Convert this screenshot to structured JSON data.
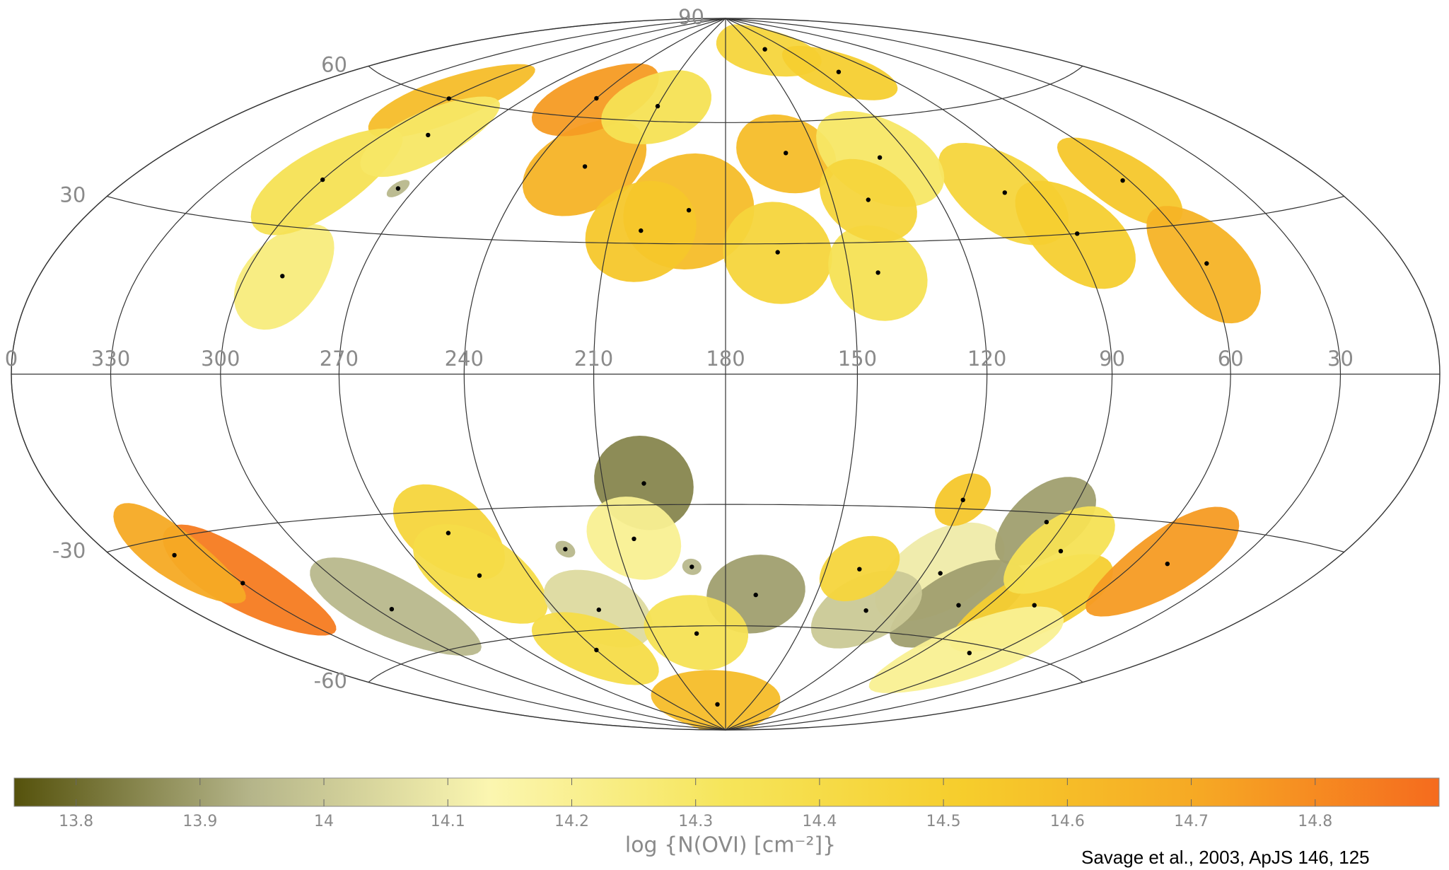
{
  "chart_data": {
    "type": "skymap",
    "projection": "hammer-aitoff",
    "lon_ticks": [
      {
        "value": 360,
        "label": "0"
      },
      330,
      300,
      270,
      240,
      210,
      180,
      150,
      120,
      90,
      60,
      30
    ],
    "lat_ticks": [
      90,
      60,
      30,
      -30,
      -60
    ],
    "grid": true,
    "sightlines": [
      {
        "l": 224,
        "b": 48,
        "r": 12,
        "logN": 14.65
      },
      {
        "l": 190,
        "b": 38,
        "r": 14,
        "logN": 14.6
      },
      {
        "l": 202,
        "b": 33,
        "r": 12,
        "logN": 14.55
      },
      {
        "l": 160,
        "b": 52,
        "r": 10,
        "logN": 14.6
      },
      {
        "l": 167,
        "b": 28,
        "r": 12,
        "logN": 14.45
      },
      {
        "l": 143,
        "b": 23,
        "r": 11,
        "logN": 14.35
      },
      {
        "l": 100,
        "b": 40,
        "r": 12,
        "logN": 14.45
      },
      {
        "l": 88,
        "b": 30,
        "r": 12,
        "logN": 14.5
      },
      {
        "l": 62,
        "b": 40,
        "r": 10,
        "logN": 14.55
      },
      {
        "l": 58,
        "b": 22,
        "r": 12,
        "logN": 14.65
      },
      {
        "l": 290,
        "b": 20,
        "r": 11,
        "logN": 14.25
      },
      {
        "l": 240,
        "b": 65,
        "r": 10,
        "logN": 14.75
      },
      {
        "l": 300,
        "b": 60,
        "r": 10,
        "logN": 14.6
      },
      {
        "l": 300,
        "b": 40,
        "r": 12,
        "logN": 14.35
      },
      {
        "l": 285,
        "b": 52,
        "r": 10,
        "logN": 14.3
      },
      {
        "l": 130,
        "b": 50,
        "r": 12,
        "logN": 14.3
      },
      {
        "l": 140,
        "b": 80,
        "r": 8,
        "logN": 14.45
      },
      {
        "l": 110,
        "b": 72,
        "r": 8,
        "logN": 14.5
      },
      {
        "l": 210,
        "b": 64,
        "r": 10,
        "logN": 14.35
      },
      {
        "l": 140,
        "b": 40,
        "r": 10,
        "logN": 14.45
      },
      {
        "l": 275,
        "b": 40,
        "r": 2,
        "logN": 13.95
      },
      {
        "l": 200,
        "b": -25,
        "r": 11,
        "logN": 13.85
      },
      {
        "l": 205,
        "b": -38,
        "r": 10,
        "logN": 14.2
      },
      {
        "l": 255,
        "b": -35,
        "r": 11,
        "logN": 14.45
      },
      {
        "l": 255,
        "b": -45,
        "r": 12,
        "logN": 14.4
      },
      {
        "l": 330,
        "b": -40,
        "r": 12,
        "logN": 14.85
      },
      {
        "l": 340,
        "b": -33,
        "r": 10,
        "logN": 14.7
      },
      {
        "l": 295,
        "b": -50,
        "r": 12,
        "logN": 13.95
      },
      {
        "l": 225,
        "b": -55,
        "r": 10,
        "logN": 14.05
      },
      {
        "l": 170,
        "b": -52,
        "r": 10,
        "logN": 13.9
      },
      {
        "l": 190,
        "b": -82,
        "r": 10,
        "logN": 14.6
      },
      {
        "l": 115,
        "b": -45,
        "r": 12,
        "logN": 14.1
      },
      {
        "l": 100,
        "b": -52,
        "r": 11,
        "logN": 13.9
      },
      {
        "l": 95,
        "b": -32,
        "r": 10,
        "logN": 13.9
      },
      {
        "l": 75,
        "b": -50,
        "r": 12,
        "logN": 14.5
      },
      {
        "l": 50,
        "b": -38,
        "r": 12,
        "logN": 14.75
      },
      {
        "l": 85,
        "b": -38,
        "r": 10,
        "logN": 14.35
      },
      {
        "l": 130,
        "b": -55,
        "r": 10,
        "logN": 14.0
      },
      {
        "l": 140,
        "b": -45,
        "r": 8,
        "logN": 14.45
      },
      {
        "l": 70,
        "b": -62,
        "r": 12,
        "logN": 14.2
      },
      {
        "l": 240,
        "b": -65,
        "r": 10,
        "logN": 14.4
      },
      {
        "l": 192,
        "b": -62,
        "r": 10,
        "logN": 14.35
      },
      {
        "l": 120,
        "b": -28,
        "r": 6,
        "logN": 14.55
      },
      {
        "l": 225,
        "b": -40,
        "r": 2,
        "logN": 13.95
      },
      {
        "l": 190,
        "b": -45,
        "r": 2,
        "logN": 13.95
      }
    ],
    "colorbar": {
      "lim": [
        13.75,
        14.9
      ],
      "ticks": [
        13.8,
        13.9,
        14,
        14.1,
        14.2,
        14.3,
        14.4,
        14.5,
        14.6,
        14.7,
        14.8
      ],
      "colormap": [
        "#55520c",
        "#b5b58a",
        "#fbf6b0",
        "#f6e55a",
        "#f6cd2c",
        "#f6a824",
        "#f56b1e"
      ],
      "label": "log {N(OVI) [cm⁻²]}"
    },
    "citation": "Savage et al., 2003, ApJS 146, 125"
  }
}
